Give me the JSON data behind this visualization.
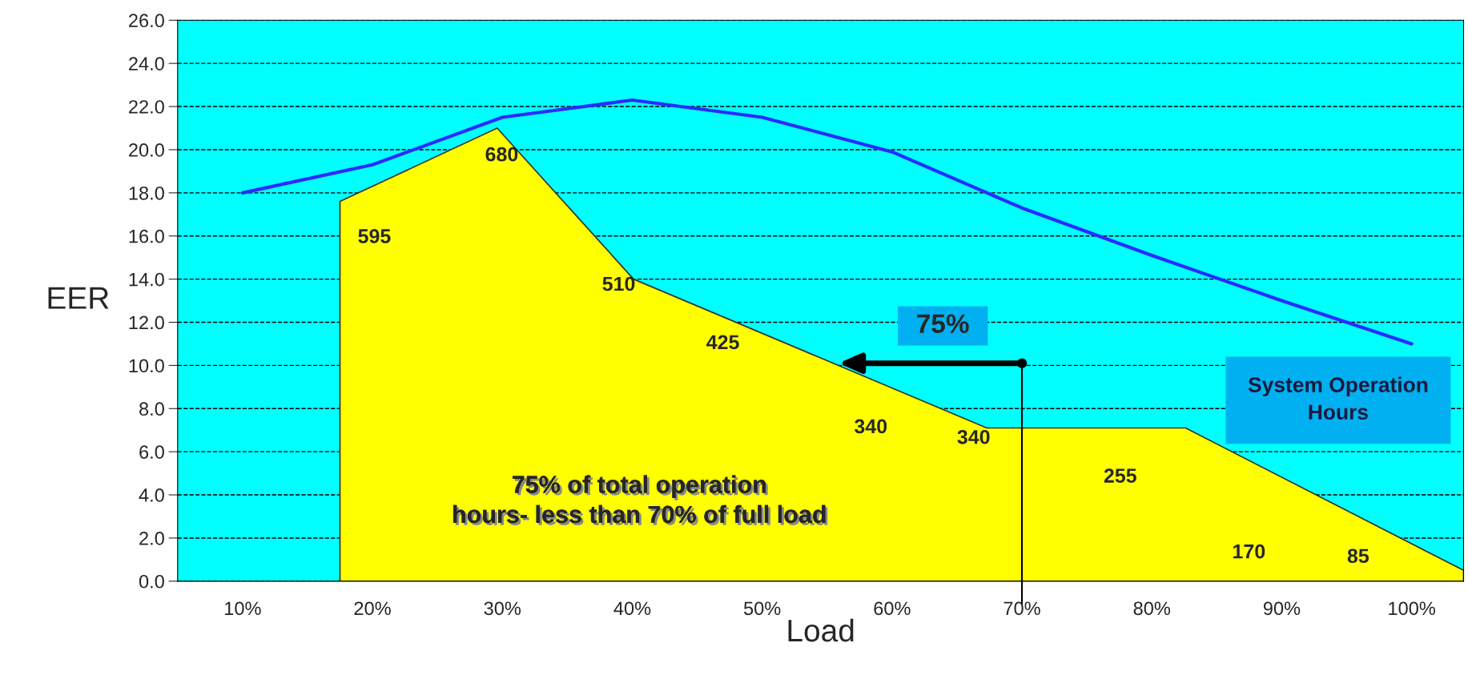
{
  "chart_data": {
    "type": "line",
    "xlabel": "Load",
    "ylabel": "EER",
    "xlim": [
      5,
      104
    ],
    "xticks": [
      {
        "value": 10,
        "label": "10%"
      },
      {
        "value": 20,
        "label": "20%"
      },
      {
        "value": 30,
        "label": "30%"
      },
      {
        "value": 40,
        "label": "40%"
      },
      {
        "value": 50,
        "label": "50%"
      },
      {
        "value": 60,
        "label": "60%"
      },
      {
        "value": 70,
        "label": "70%"
      },
      {
        "value": 80,
        "label": "80%"
      },
      {
        "value": 90,
        "label": "90%"
      },
      {
        "value": 100,
        "label": "100%"
      }
    ],
    "ylim": [
      0,
      26
    ],
    "yticks": [
      {
        "value": 0,
        "label": "0.0"
      },
      {
        "value": 2,
        "label": "2.0"
      },
      {
        "value": 4,
        "label": "4.0"
      },
      {
        "value": 6,
        "label": "6.0"
      },
      {
        "value": 8,
        "label": "8.0"
      },
      {
        "value": 10,
        "label": "10.0"
      },
      {
        "value": 12,
        "label": "12.0"
      },
      {
        "value": 14,
        "label": "14.0"
      },
      {
        "value": 16,
        "label": "16.0"
      },
      {
        "value": 18,
        "label": "18.0"
      },
      {
        "value": 20,
        "label": "20.0"
      },
      {
        "value": 22,
        "label": "22.0"
      },
      {
        "value": 24,
        "label": "24.0"
      },
      {
        "value": 26,
        "label": "26.0"
      }
    ],
    "grid": "y",
    "legend": false,
    "marker": "none",
    "line_style": "solid",
    "series": [
      {
        "type": "area",
        "color": "#ffff00",
        "x": [
          17.5,
          29.6,
          40.1,
          67.3,
          82.6,
          104
        ],
        "values": [
          17.6,
          21.0,
          14.0,
          7.1,
          7.1,
          0.5
        ]
      },
      {
        "color": "#2b2bff",
        "x": [
          10,
          20,
          30,
          40,
          50,
          60,
          70,
          80,
          90,
          100
        ],
        "values": [
          18.0,
          19.3,
          21.5,
          22.3,
          21.5,
          19.9,
          17.3,
          15.1,
          13.0,
          11.0
        ]
      }
    ],
    "ref_lines": [
      {
        "axis": "x",
        "value": 70,
        "color": "#000000"
      }
    ],
    "annotations": [
      "595",
      "680",
      "510",
      "425",
      "340",
      "340",
      "255",
      "170",
      "85",
      "75%",
      "System Operation\nHours",
      "75% of total operation\nhours- less than 70% of full load"
    ]
  }
}
